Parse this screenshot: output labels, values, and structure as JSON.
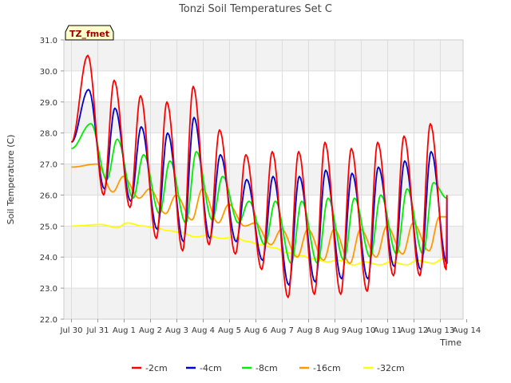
{
  "chart_data": {
    "type": "line",
    "title": "Tonzi Soil Temperatures Set C",
    "xlabel": "Time",
    "ylabel": "Soil Temperature (C)",
    "badge": "TZ_fmet",
    "ylim": [
      22.0,
      31.0
    ],
    "yticks": [
      "22.0",
      "23.0",
      "24.0",
      "25.0",
      "26.0",
      "27.0",
      "28.0",
      "29.0",
      "30.0",
      "31.0"
    ],
    "xlim": [
      0,
      15.5
    ],
    "xticks": [
      {
        "day": 0,
        "label": "Jul 30"
      },
      {
        "day": 1,
        "label": "Jul 31"
      },
      {
        "day": 2,
        "label": "Aug 1"
      },
      {
        "day": 3,
        "label": "Aug 2"
      },
      {
        "day": 4,
        "label": "Aug 3"
      },
      {
        "day": 5,
        "label": "Aug 4"
      },
      {
        "day": 6,
        "label": "Aug 5"
      },
      {
        "day": 7,
        "label": "Aug 6"
      },
      {
        "day": 8,
        "label": "Aug 7"
      },
      {
        "day": 9,
        "label": "Aug 8"
      },
      {
        "day": 10,
        "label": "Aug 9"
      },
      {
        "day": 11,
        "label": "Aug 10"
      },
      {
        "day": 12,
        "label": "Aug 11"
      },
      {
        "day": 13,
        "label": "Aug 12"
      },
      {
        "day": 14,
        "label": "Aug 13"
      },
      {
        "day": 15,
        "label": "Aug 14"
      }
    ],
    "grid": true,
    "legend_position": "bottom",
    "series": [
      {
        "name": "-2cm",
        "color": "#ff0000",
        "lag": 0.0,
        "start": 27.7,
        "end": 26.0,
        "peaks": [
          30.5,
          29.7,
          29.2,
          29.0,
          29.5,
          28.1,
          27.3,
          27.4,
          27.4,
          27.7,
          27.5,
          27.7,
          27.9,
          28.3
        ],
        "troughs": [
          26.0,
          25.6,
          24.6,
          24.2,
          24.4,
          24.1,
          23.6,
          22.7,
          22.8,
          22.8,
          22.9,
          23.4,
          23.4,
          23.6
        ]
      },
      {
        "name": "-4cm",
        "color": "#0000cc",
        "lag": 0.03,
        "start": 27.7,
        "end": 25.9,
        "peaks": [
          29.4,
          28.8,
          28.2,
          28.0,
          28.5,
          27.3,
          26.5,
          26.6,
          26.6,
          26.8,
          26.7,
          26.9,
          27.1,
          27.4
        ],
        "troughs": [
          26.2,
          25.8,
          24.9,
          24.5,
          24.6,
          24.5,
          23.9,
          23.1,
          23.2,
          23.3,
          23.3,
          23.7,
          23.6,
          23.8
        ],
        "legend_text": "-4cm"
      },
      {
        "name": "-8cm",
        "color": "#00ee00",
        "lag": 0.12,
        "start": 27.5,
        "end": 25.9,
        "peaks": [
          28.3,
          27.8,
          27.3,
          27.1,
          27.4,
          26.6,
          25.8,
          25.8,
          25.8,
          25.9,
          25.9,
          26.0,
          26.2,
          26.4
        ],
        "troughs": [
          26.5,
          25.9,
          25.4,
          25.1,
          25.2,
          25.1,
          24.4,
          23.8,
          23.8,
          23.9,
          24.0,
          24.1,
          24.1,
          24.3
        ]
      },
      {
        "name": "-16cm",
        "color": "#ff9900",
        "lag": 0.35,
        "start": 26.9,
        "end": 25.3,
        "peaks": [
          27.0,
          26.6,
          26.2,
          26.0,
          26.2,
          25.7,
          25.1,
          24.9,
          24.9,
          24.9,
          24.9,
          25.0,
          25.1,
          25.3
        ],
        "troughs": [
          26.1,
          25.9,
          25.4,
          25.2,
          25.1,
          25.0,
          24.4,
          24.0,
          23.9,
          23.8,
          24.0,
          24.1,
          24.2,
          24.3
        ]
      },
      {
        "name": "-32cm",
        "color": "#ffff00",
        "lag": 0.5,
        "start": 25.0,
        "end": 23.95,
        "peaks": [
          25.05,
          25.1,
          24.95,
          24.8,
          24.7,
          24.65,
          24.4,
          24.15,
          23.95,
          23.9,
          23.85,
          23.85,
          23.9,
          23.95
        ],
        "troughs": [
          24.95,
          25.0,
          24.85,
          24.65,
          24.6,
          24.5,
          24.3,
          24.05,
          23.85,
          23.75,
          23.75,
          23.75,
          23.8,
          23.85
        ]
      }
    ]
  }
}
